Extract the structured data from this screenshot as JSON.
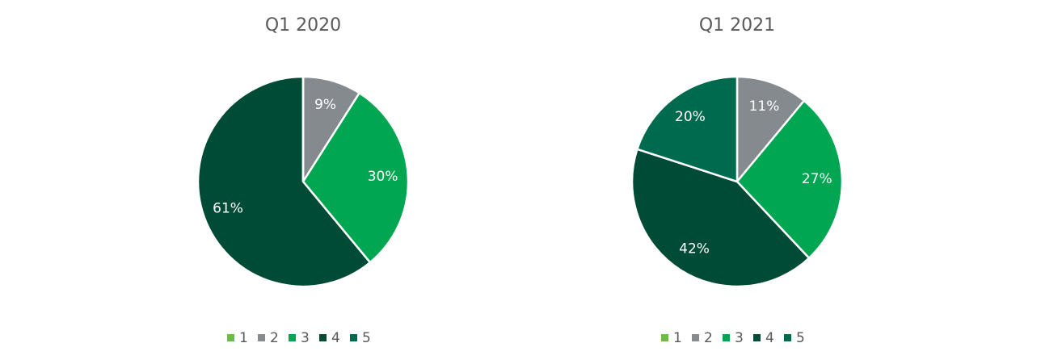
{
  "chart_data": [
    {
      "type": "pie",
      "title": "Q1 2020",
      "categories": [
        "1",
        "2",
        "3",
        "4",
        "5"
      ],
      "values": [
        0,
        9,
        30,
        61,
        0
      ],
      "value_labels": [
        null,
        "9%",
        "30%",
        "61%",
        null
      ],
      "colors": [
        "#6cbd45",
        "#858a8f",
        "#00a651",
        "#004b35",
        "#006a4e"
      ]
    },
    {
      "type": "pie",
      "title": "Q1 2021",
      "categories": [
        "1",
        "2",
        "3",
        "4",
        "5"
      ],
      "values": [
        0,
        11,
        27,
        42,
        20
      ],
      "value_labels": [
        null,
        "11%",
        "27%",
        "42%",
        "20%"
      ],
      "colors": [
        "#6cbd45",
        "#858a8f",
        "#00a651",
        "#004b35",
        "#006a4e"
      ]
    }
  ]
}
